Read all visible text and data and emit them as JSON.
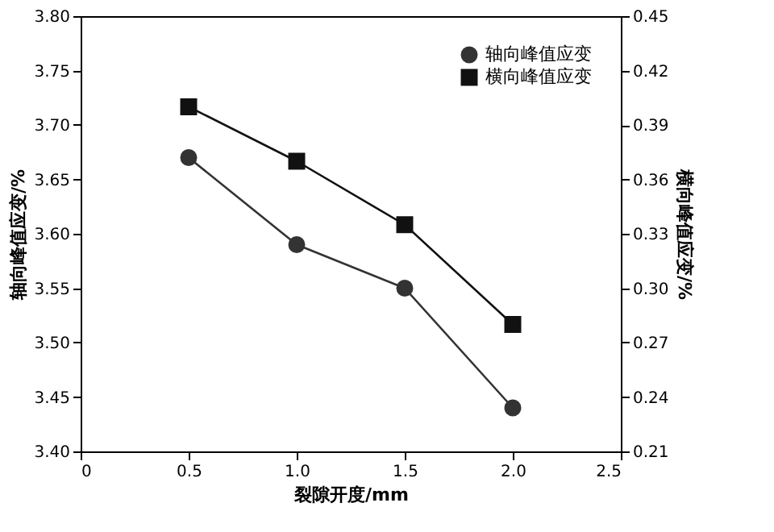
{
  "chart_data": {
    "type": "line",
    "xlabel": "裂隙开度/mm",
    "ylabel": "轴向峰值应变/%",
    "y2label": "横向峰值应变/%",
    "x": [
      0.5,
      1.0,
      1.5,
      2.0
    ],
    "series": [
      {
        "name": "轴向峰值应变",
        "color": "#333333",
        "values": [
          3.67,
          3.59,
          3.55,
          3.44
        ],
        "marker": "circle"
      },
      {
        "name": "横向峰值应变",
        "color": "#111111",
        "values": [
          0.4,
          0.37,
          0.335,
          0.28
        ],
        "marker": "square",
        "axis": "y2"
      }
    ],
    "xlim": [
      0,
      2.5
    ],
    "xticks": [
      0,
      0.5,
      {
        "value": 1.0,
        "label": "1.0"
      },
      1.5,
      {
        "value": 2.0,
        "label": "2.0"
      },
      2.5
    ],
    "ylim": [
      3.4,
      3.8
    ],
    "yticks": [
      {
        "value": 3.4,
        "label": "3.40"
      },
      3.45,
      {
        "value": 3.5,
        "label": "3.50"
      },
      3.55,
      {
        "value": 3.6,
        "label": "3.60"
      },
      3.65,
      {
        "value": 3.7,
        "label": "3.70"
      },
      3.75,
      {
        "value": 3.8,
        "label": "3.80"
      }
    ],
    "y2lim": [
      0.21,
      0.45
    ],
    "y2ticks": [
      0.21,
      0.24,
      0.27,
      {
        "value": 0.3,
        "label": "0.30"
      },
      0.33,
      0.36,
      0.39,
      0.42,
      0.45
    ],
    "legend": "top right",
    "line_style": "solid"
  }
}
